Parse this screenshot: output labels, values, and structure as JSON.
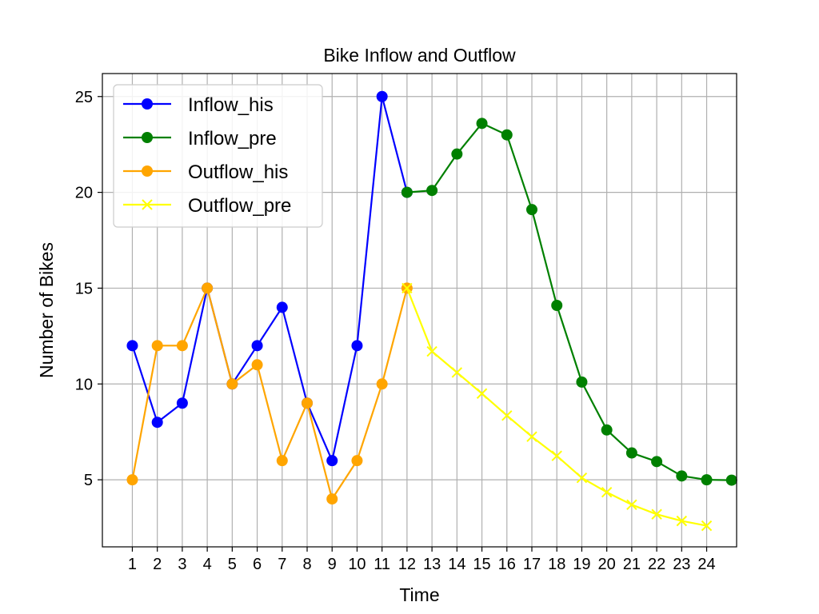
{
  "chart_data": {
    "type": "line",
    "title": "Bike Inflow and Outflow",
    "xlabel": "Time",
    "ylabel": "Number of Bikes",
    "xlim": [
      -0.2,
      25.2
    ],
    "ylim": [
      1.5,
      26.2
    ],
    "x_ticks": [
      1,
      2,
      3,
      4,
      5,
      6,
      7,
      8,
      9,
      10,
      11,
      12,
      13,
      14,
      15,
      16,
      17,
      18,
      19,
      20,
      21,
      22,
      23,
      24
    ],
    "x_tick_labels": [
      "1",
      "2",
      "3",
      "4",
      "5",
      "6",
      "7",
      "8",
      "9",
      "10",
      "11",
      "12",
      "13",
      "14",
      "15",
      "16",
      "17",
      "18",
      "19",
      "20",
      "21",
      "22",
      "23",
      "24"
    ],
    "y_ticks": [
      5,
      10,
      15,
      20,
      25
    ],
    "y_tick_labels": [
      "5",
      "10",
      "15",
      "20",
      "25"
    ],
    "grid": true,
    "legend_position": "top-left",
    "series": [
      {
        "name": "Inflow_his",
        "color": "#0000ff",
        "marker": "circle",
        "x": [
          1,
          2,
          3,
          4,
          5,
          6,
          7,
          8,
          9,
          10,
          11,
          12
        ],
        "values": [
          12,
          8,
          9,
          15,
          10,
          12,
          14,
          9,
          6,
          12,
          25,
          20
        ]
      },
      {
        "name": "Inflow_pre",
        "color": "#008000",
        "marker": "circle",
        "x": [
          12,
          13,
          14,
          15,
          16,
          17,
          18,
          19,
          20,
          21,
          22,
          23,
          24,
          25
        ],
        "values": [
          20,
          20.1,
          22,
          23.6,
          23,
          19.1,
          14.1,
          10.1,
          7.6,
          6.4,
          5.95,
          5.2,
          5.0,
          4.98
        ]
      },
      {
        "name": "Outflow_his",
        "color": "#ffa500",
        "marker": "circle",
        "x": [
          1,
          2,
          3,
          4,
          5,
          6,
          7,
          8,
          9,
          10,
          11,
          12
        ],
        "values": [
          5,
          12,
          12,
          15,
          10,
          11,
          6,
          9,
          4,
          6,
          10,
          15
        ]
      },
      {
        "name": "Outflow_pre",
        "color": "#ffff00",
        "marker": "x",
        "x": [
          12,
          13,
          14,
          15,
          16,
          17,
          18,
          19,
          20,
          21,
          22,
          23,
          24
        ],
        "values": [
          15,
          11.7,
          10.6,
          9.5,
          8.35,
          7.25,
          6.25,
          5.1,
          4.35,
          3.7,
          3.2,
          2.85,
          2.6
        ]
      }
    ]
  }
}
